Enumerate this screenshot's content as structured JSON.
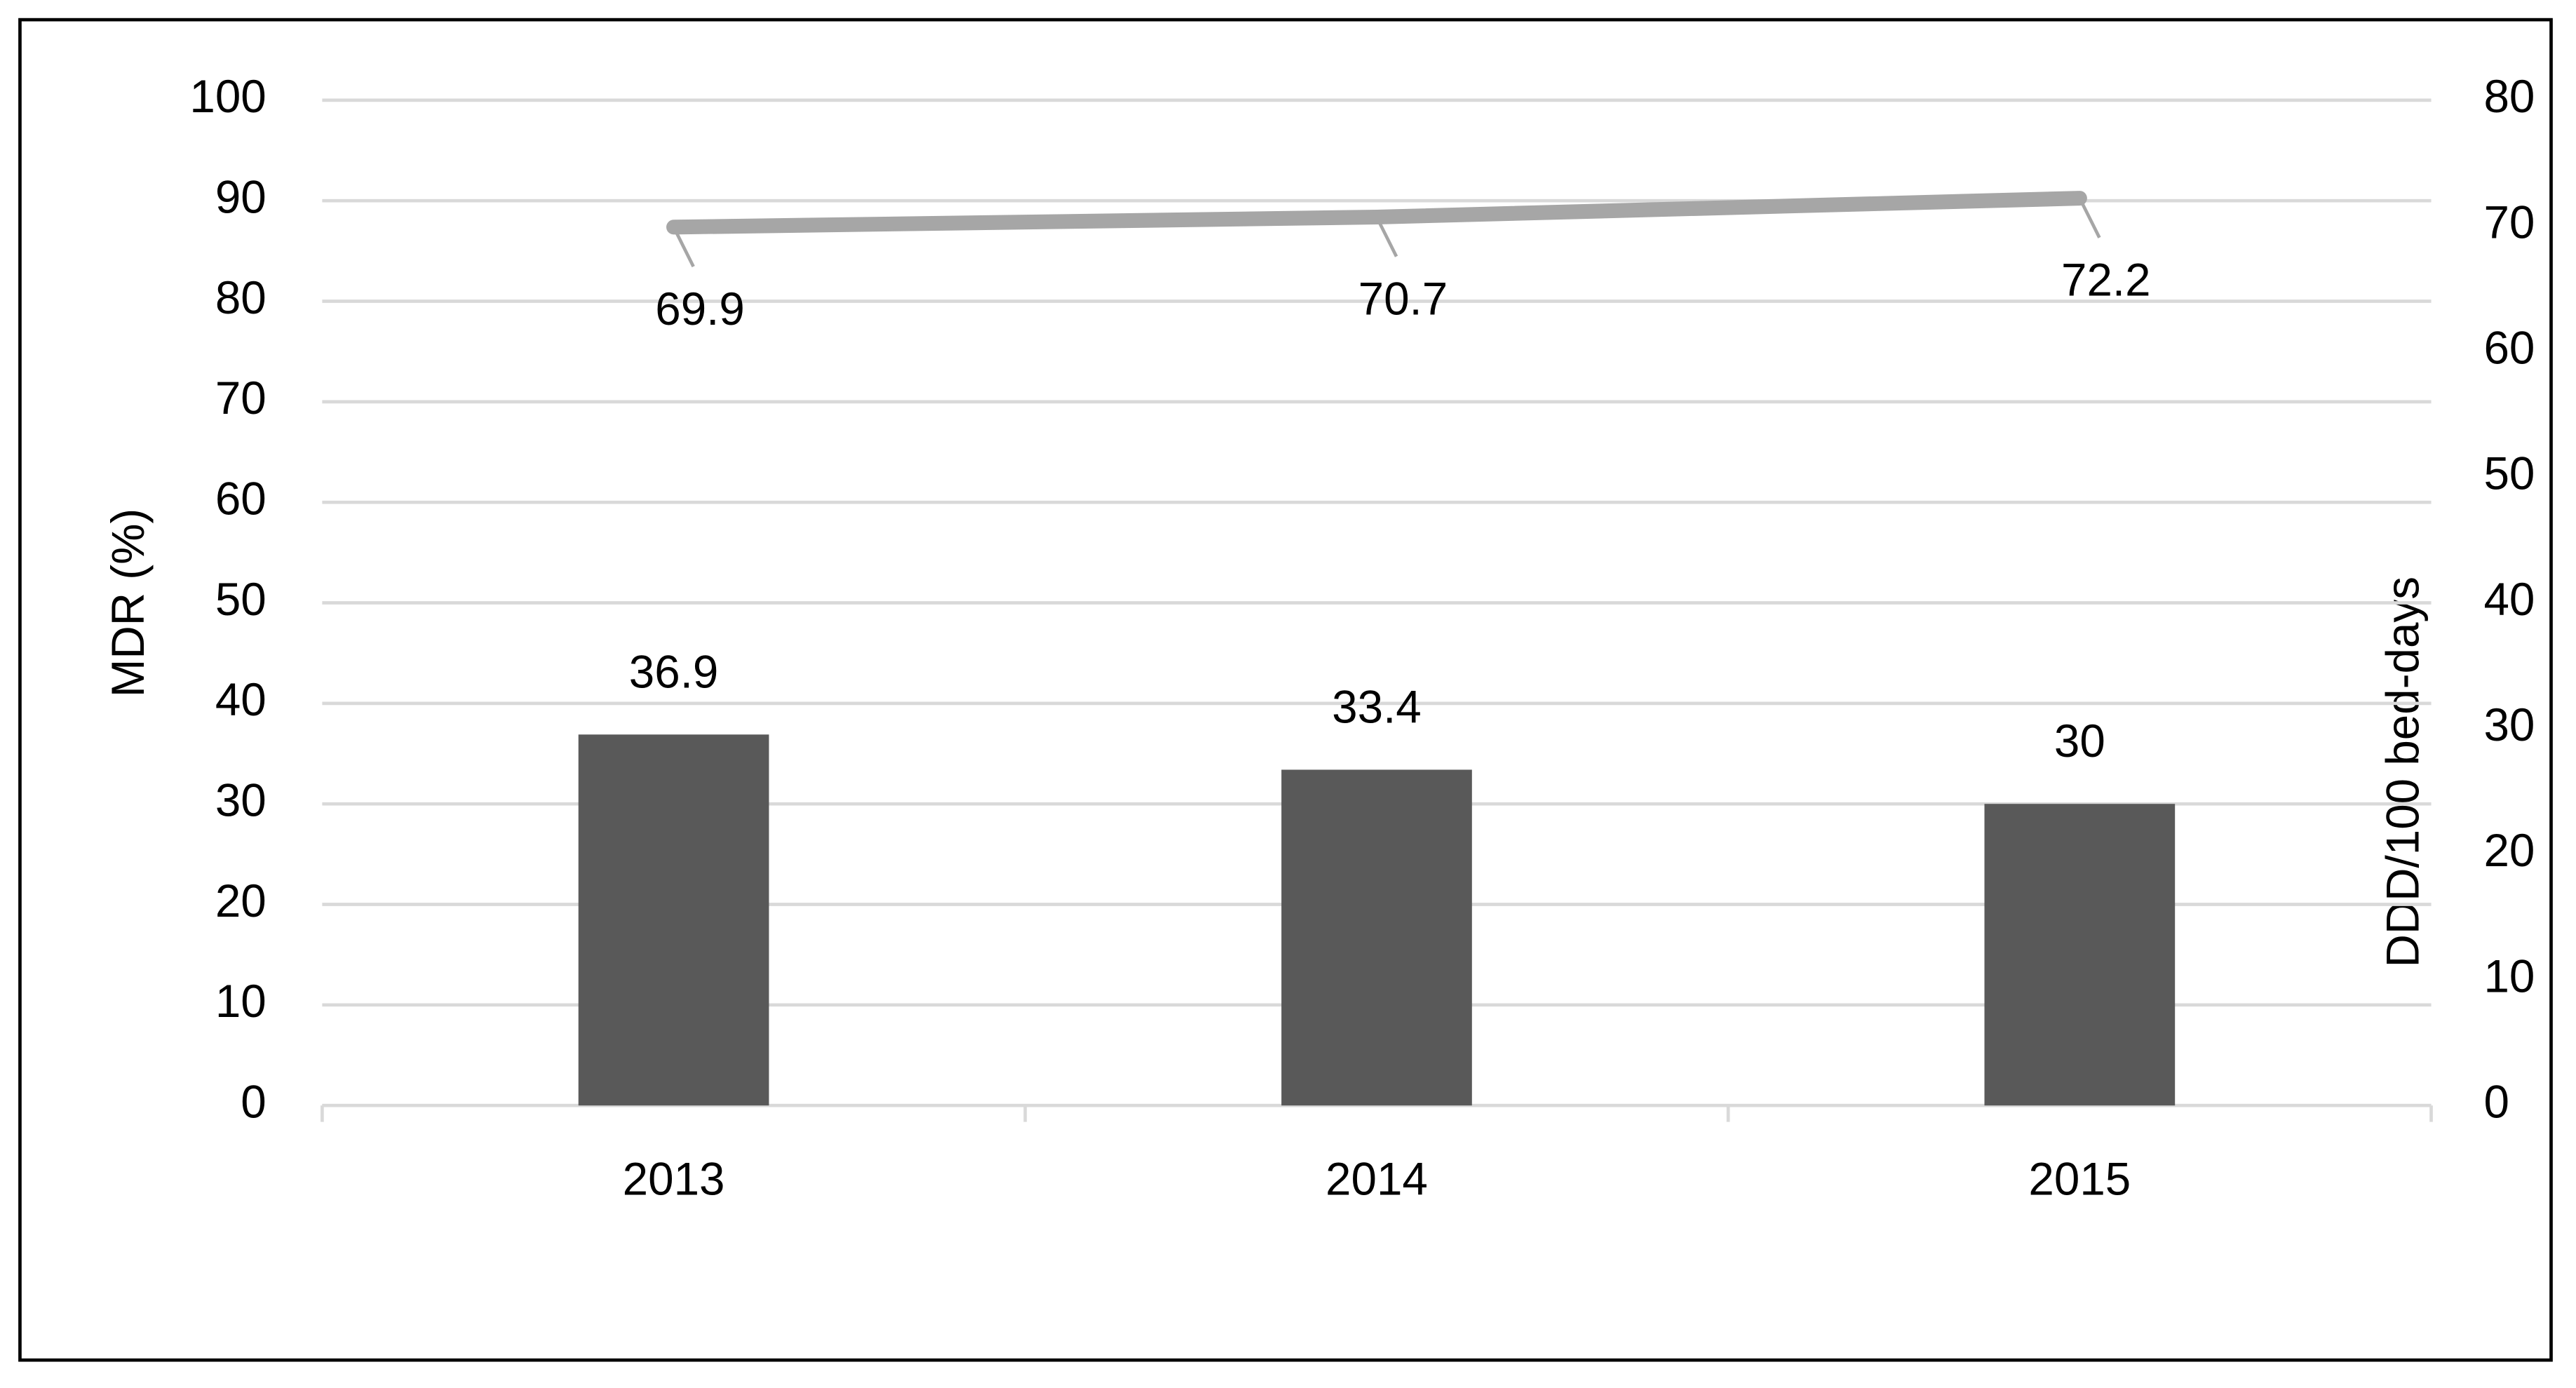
{
  "chart_data": {
    "type": "bar_line",
    "categories": [
      "2013",
      "2014",
      "2015"
    ],
    "y_label": "MDR (%)",
    "y2_label": "DDD/100 bed-days",
    "y2_label_color": "#ff0000",
    "ylim": [
      0,
      100
    ],
    "yticks": [
      0,
      10,
      20,
      30,
      40,
      50,
      60,
      70,
      80,
      90,
      100
    ],
    "y2lim": [
      0,
      80
    ],
    "y2ticks": [
      0,
      10,
      20,
      30,
      40,
      50,
      60,
      70,
      80
    ],
    "grid": true,
    "series": [
      {
        "type": "bar",
        "color": "#595959",
        "values": [
          36.9,
          33.4,
          30
        ]
      },
      {
        "type": "line",
        "axis": "y2",
        "color": "#a6a6a6",
        "values": [
          69.9,
          70.7,
          72.2
        ]
      }
    ]
  }
}
